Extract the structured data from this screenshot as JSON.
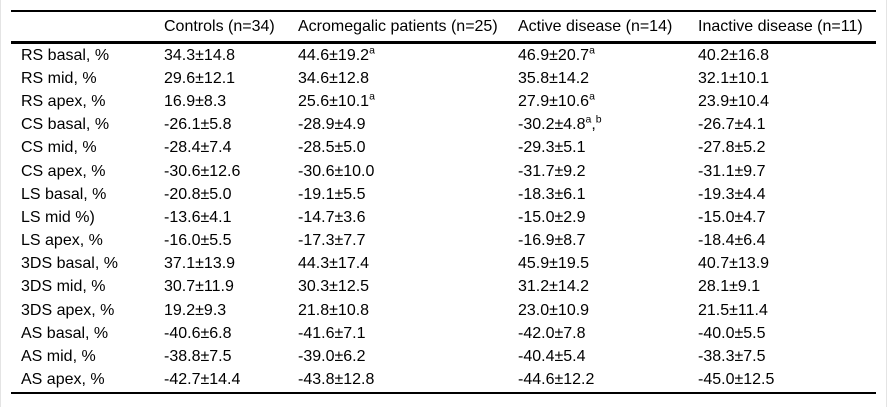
{
  "page": {
    "background": "#ffffff",
    "edge_border_color": "#e4e4e4",
    "rule_color": "#000000",
    "text_color": "#000000"
  },
  "table": {
    "columns": [
      "",
      "Controls (n=34)",
      "Acromegalic patients (n=25)",
      "Active disease (n=14)",
      "Inactive disease (n=11)"
    ],
    "rows": [
      {
        "label": "RS basal, %",
        "cells": [
          {
            "v": "34.3±14.8"
          },
          {
            "v": "44.6±19.2",
            "sup": "a"
          },
          {
            "v": "46.9±20.7",
            "sup": "a"
          },
          {
            "v": "40.2±16.8"
          }
        ]
      },
      {
        "label": "RS mid, %",
        "cells": [
          {
            "v": "29.6±12.1"
          },
          {
            "v": "34.6±12.8"
          },
          {
            "v": "35.8±14.2"
          },
          {
            "v": "32.1±10.1"
          }
        ]
      },
      {
        "label": "RS apex, %",
        "cells": [
          {
            "v": "16.9±8.3"
          },
          {
            "v": "25.6±10.1",
            "sup": "a"
          },
          {
            "v": "27.9±10.6",
            "sup": "a"
          },
          {
            "v": "23.9±10.4"
          }
        ]
      },
      {
        "label": "CS basal, %",
        "cells": [
          {
            "v": "-26.1±5.8"
          },
          {
            "v": "-28.9±4.9"
          },
          {
            "v": "-30.2±4.8",
            "sup": "a,b"
          },
          {
            "v": "-26.7±4.1"
          }
        ]
      },
      {
        "label": "CS mid, %",
        "cells": [
          {
            "v": "-28.4±7.4"
          },
          {
            "v": "-28.5±5.0"
          },
          {
            "v": "-29.3±5.1"
          },
          {
            "v": "-27.8±5.2"
          }
        ]
      },
      {
        "label": "CS apex, %",
        "cells": [
          {
            "v": "-30.6±12.6"
          },
          {
            "v": "-30.6±10.0"
          },
          {
            "v": "-31.7±9.2"
          },
          {
            "v": "-31.1±9.7"
          }
        ]
      },
      {
        "label": "LS basal, %",
        "cells": [
          {
            "v": "-20.8±5.0"
          },
          {
            "v": "-19.1±5.5"
          },
          {
            "v": "-18.3±6.1"
          },
          {
            "v": "-19.3±4.4"
          }
        ]
      },
      {
        "label": "LS mid %)",
        "cells": [
          {
            "v": "-13.6±4.1"
          },
          {
            "v": "-14.7±3.6"
          },
          {
            "v": "-15.0±2.9"
          },
          {
            "v": "-15.0±4.7"
          }
        ]
      },
      {
        "label": "LS apex, %",
        "cells": [
          {
            "v": "-16.0±5.5"
          },
          {
            "v": "-17.3±7.7"
          },
          {
            "v": "-16.9±8.7"
          },
          {
            "v": "-18.4±6.4"
          }
        ]
      },
      {
        "label": "3DS basal, %",
        "cells": [
          {
            "v": "37.1±13.9"
          },
          {
            "v": "44.3±17.4"
          },
          {
            "v": "45.9±19.5"
          },
          {
            "v": "40.7±13.9"
          }
        ]
      },
      {
        "label": "3DS mid, %",
        "cells": [
          {
            "v": "30.7±11.9"
          },
          {
            "v": "30.3±12.5"
          },
          {
            "v": "31.2±14.2"
          },
          {
            "v": "28.1±9.1"
          }
        ]
      },
      {
        "label": "3DS apex, %",
        "cells": [
          {
            "v": "19.2±9.3"
          },
          {
            "v": "21.8±10.8"
          },
          {
            "v": "23.0±10.9"
          },
          {
            "v": "21.5±11.4"
          }
        ]
      },
      {
        "label": "AS basal, %",
        "cells": [
          {
            "v": "-40.6±6.8"
          },
          {
            "v": "-41.6±7.1"
          },
          {
            "v": "-42.0±7.8"
          },
          {
            "v": "-40.0±5.5"
          }
        ]
      },
      {
        "label": "AS mid, %",
        "cells": [
          {
            "v": "-38.8±7.5"
          },
          {
            "v": "-39.0±6.2"
          },
          {
            "v": "-40.4±5.4"
          },
          {
            "v": "-38.3±7.5"
          }
        ]
      },
      {
        "label": "AS apex, %",
        "cells": [
          {
            "v": "-42.7±14.4"
          },
          {
            "v": "-43.8±12.8"
          },
          {
            "v": "-44.6±12.2"
          },
          {
            "v": "-45.0±12.5"
          }
        ]
      }
    ]
  }
}
